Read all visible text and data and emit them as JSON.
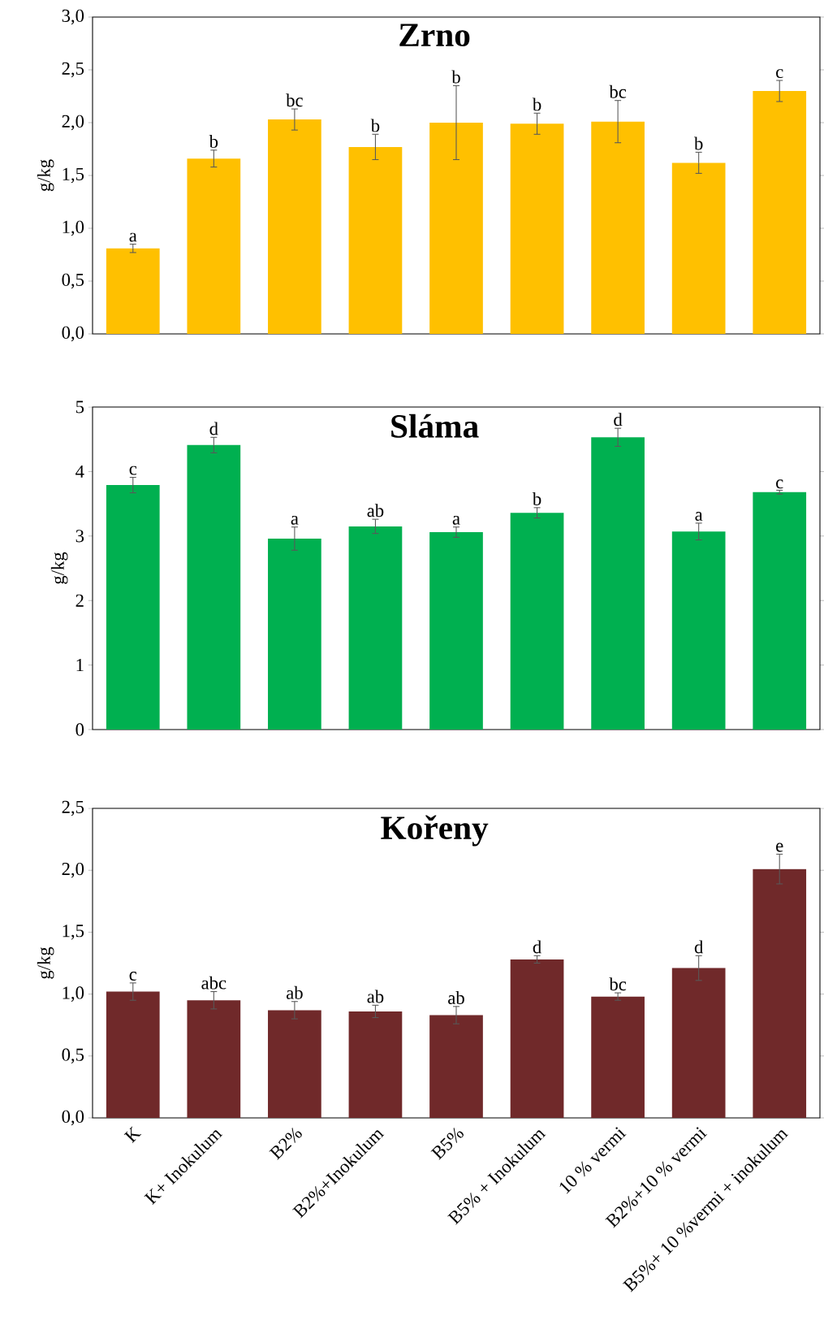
{
  "chart_data": [
    {
      "type": "bar",
      "title": "Zrno",
      "ylabel": "g/kg",
      "categories": [
        "K",
        "K+ Inokulum",
        "B2%",
        "B2%+Inokulum",
        "B5%",
        "B5% + Inokulum",
        "10 % vermi",
        "B2%+10 % vermi",
        "B5%+ 10 %vermi + inokulum"
      ],
      "values": [
        0.81,
        1.66,
        2.03,
        1.77,
        2.0,
        1.99,
        2.01,
        1.62,
        2.3
      ],
      "errors": [
        0.04,
        0.08,
        0.1,
        0.12,
        0.35,
        0.1,
        0.2,
        0.1,
        0.1
      ],
      "color": "#ffc000",
      "ylim": [
        0,
        3
      ],
      "yticks": [
        {
          "value": 0,
          "label": "0,0"
        },
        {
          "value": 0.5,
          "label": "0,5"
        },
        {
          "value": 1,
          "label": "1,0"
        },
        {
          "value": 1.5,
          "label": "1,5"
        },
        {
          "value": 2,
          "label": "2,0"
        },
        {
          "value": 2.5,
          "label": "2,5"
        },
        {
          "value": 3,
          "label": "3,0"
        }
      ],
      "tick_labels": "y",
      "annotations": [
        {
          "text": "a",
          "x": "K",
          "y": 0.85
        },
        {
          "text": "b",
          "x": "K+ Inokulum",
          "y": 1.74
        },
        {
          "text": "bc",
          "x": "B2%",
          "y": 2.13
        },
        {
          "text": "b",
          "x": "B2%+Inokulum",
          "y": 1.89
        },
        {
          "text": "b",
          "x": "B5%",
          "y": 2.35
        },
        {
          "text": "b",
          "x": "B5% + Inokulum",
          "y": 2.09
        },
        {
          "text": "bc",
          "x": "10 % vermi",
          "y": 2.21
        },
        {
          "text": "b",
          "x": "B2%+10 % vermi",
          "y": 1.72
        },
        {
          "text": "c",
          "x": "B5%+ 10 %vermi + inokulum",
          "y": 2.4
        }
      ]
    },
    {
      "type": "bar",
      "title": "Sláma",
      "ylabel": "g/kg",
      "categories": [
        "K",
        "K+ Inokulum",
        "B2%",
        "B2%+Inokulum",
        "B5%",
        "B5% + Inokulum",
        "10 % vermi",
        "B2%+10 % vermi",
        "B5%+ 10 %vermi + inokulum"
      ],
      "values": [
        3.79,
        4.41,
        2.96,
        3.15,
        3.06,
        3.36,
        4.53,
        3.07,
        3.68
      ],
      "errors": [
        0.12,
        0.12,
        0.18,
        0.11,
        0.08,
        0.08,
        0.14,
        0.13,
        0.03
      ],
      "color": "#00b050",
      "ylim": [
        0,
        5
      ],
      "yticks": [
        0,
        1,
        2,
        3,
        4,
        5
      ],
      "tick_labels": "y",
      "annotations": [
        {
          "text": "c",
          "x": "K",
          "y": 3.91
        },
        {
          "text": "d",
          "x": "K+ Inokulum",
          "y": 4.53
        },
        {
          "text": "a",
          "x": "B2%",
          "y": 3.14
        },
        {
          "text": "ab",
          "x": "B2%+Inokulum",
          "y": 3.26
        },
        {
          "text": "a",
          "x": "B5%",
          "y": 3.14
        },
        {
          "text": "b",
          "x": "B5% + Inokulum",
          "y": 3.44
        },
        {
          "text": "d",
          "x": "10 % vermi",
          "y": 4.67
        },
        {
          "text": "a",
          "x": "B2%+10 % vermi",
          "y": 3.2
        },
        {
          "text": "c",
          "x": "B5%+ 10 %vermi + inokulum",
          "y": 3.7
        }
      ]
    },
    {
      "type": "bar",
      "title": "Kořeny",
      "ylabel": "g/kg",
      "categories": [
        "K",
        "K+ Inokulum",
        "B2%",
        "B2%+Inokulum",
        "B5%",
        "B5% + Inokulum",
        "10 % vermi",
        "B2%+10 % vermi",
        "B5%+ 10 %vermi + inokulum"
      ],
      "values": [
        1.02,
        0.95,
        0.87,
        0.86,
        0.83,
        1.28,
        0.98,
        1.21,
        2.01
      ],
      "errors": [
        0.07,
        0.07,
        0.07,
        0.05,
        0.07,
        0.03,
        0.03,
        0.1,
        0.12
      ],
      "color": "#70292a",
      "ylim": [
        0,
        2.5
      ],
      "yticks": [
        {
          "value": 0,
          "label": "0,0"
        },
        {
          "value": 0.5,
          "label": "0,5"
        },
        {
          "value": 1,
          "label": "1,0"
        },
        {
          "value": 1.5,
          "label": "1,5"
        },
        {
          "value": 2,
          "label": "2,0"
        },
        {
          "value": 2.5,
          "label": "2,5"
        }
      ],
      "annotations": [
        {
          "text": "c",
          "x": "K",
          "y": 1.09
        },
        {
          "text": "abc",
          "x": "K+ Inokulum",
          "y": 1.02
        },
        {
          "text": "ab",
          "x": "B2%",
          "y": 0.94
        },
        {
          "text": "ab",
          "x": "B2%+Inokulum",
          "y": 0.91
        },
        {
          "text": "ab",
          "x": "B5%",
          "y": 0.9
        },
        {
          "text": "d",
          "x": "B5% + Inokulum",
          "y": 1.31
        },
        {
          "text": "bc",
          "x": "10 % vermi",
          "y": 1.01
        },
        {
          "text": "d",
          "x": "B2%+10 % vermi",
          "y": 1.31
        },
        {
          "text": "e",
          "x": "B5%+ 10 %vermi + inokulum",
          "y": 2.13
        }
      ]
    }
  ]
}
